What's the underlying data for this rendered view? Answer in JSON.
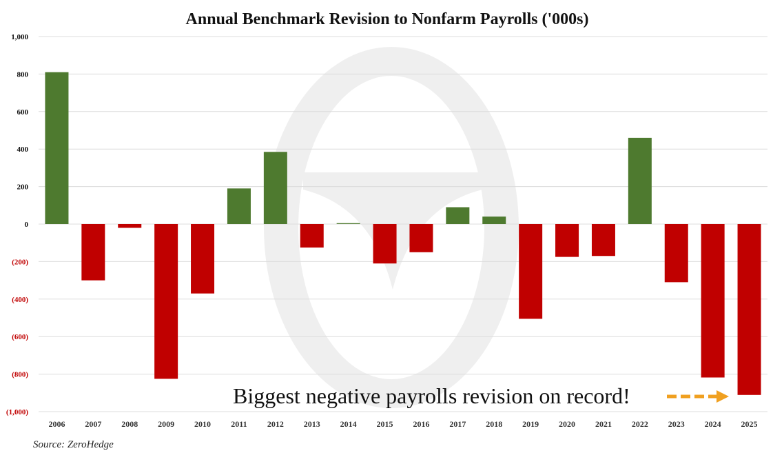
{
  "chart_data": {
    "type": "bar",
    "title": "Annual Benchmark Revision to Nonfarm Payrolls ('000s)",
    "xlabel": "",
    "ylabel": "",
    "categories": [
      "2006",
      "2007",
      "2008",
      "2009",
      "2010",
      "2011",
      "2012",
      "2013",
      "2014",
      "2015",
      "2016",
      "2017",
      "2018",
      "2019",
      "2020",
      "2021",
      "2022",
      "2023",
      "2024",
      "2025"
    ],
    "values": [
      810,
      -300,
      -20,
      -825,
      -370,
      190,
      385,
      -125,
      5,
      -210,
      -150,
      90,
      40,
      -505,
      -175,
      -170,
      460,
      -310,
      -818,
      -911
    ],
    "ylim": [
      -1000,
      1000
    ],
    "yticks": [
      1000,
      800,
      600,
      400,
      200,
      0,
      -200,
      -400,
      -600,
      -800,
      -1000
    ],
    "ytick_labels": [
      "1,000",
      "800",
      "600",
      "400",
      "200",
      "0",
      "(200)",
      "(400)",
      "(600)",
      "(800)",
      "(1,000)"
    ],
    "grid": true,
    "colors": {
      "positive": "#4e7a2f",
      "negative": "#c00000",
      "negative_tick": "#c00000",
      "positive_tick": "#111111",
      "arrow": "#f0a020",
      "watermark": "#ececec"
    },
    "annotation": "Biggest negative payrolls revision on record!",
    "source": "Source: ZeroHedge"
  }
}
